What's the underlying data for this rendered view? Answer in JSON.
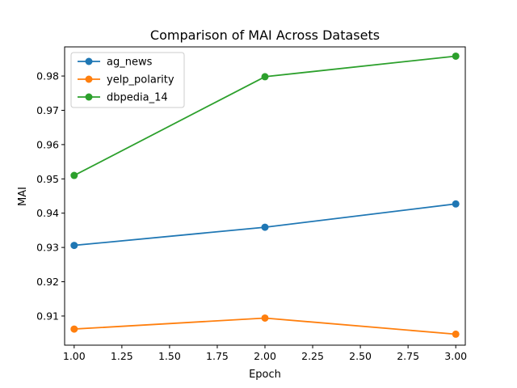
{
  "chart_data": {
    "type": "line",
    "title": "Comparison of MAI Across Datasets",
    "xlabel": "Epoch",
    "ylabel": "MAI",
    "x": [
      1.0,
      2.0,
      3.0
    ],
    "xlim": [
      0.95,
      3.05
    ],
    "ylim": [
      0.9015,
      0.9885
    ],
    "xticks": [
      1.0,
      1.25,
      1.5,
      1.75,
      2.0,
      2.25,
      2.5,
      2.75,
      3.0
    ],
    "xtick_labels": [
      "1.00",
      "1.25",
      "1.50",
      "1.75",
      "2.00",
      "2.25",
      "2.50",
      "2.75",
      "3.00"
    ],
    "yticks": [
      0.91,
      0.92,
      0.93,
      0.94,
      0.95,
      0.96,
      0.97,
      0.98
    ],
    "ytick_labels": [
      "0.91",
      "0.92",
      "0.93",
      "0.94",
      "0.95",
      "0.96",
      "0.97",
      "0.98"
    ],
    "grid": false,
    "legend_position": "top-left",
    "series": [
      {
        "name": "ag_news",
        "color": "#1f77b4",
        "values": [
          0.9306,
          0.9359,
          0.9427
        ]
      },
      {
        "name": "yelp_polarity",
        "color": "#ff7f0e",
        "values": [
          0.9062,
          0.9094,
          0.9047
        ]
      },
      {
        "name": "dbpedia_14",
        "color": "#2ca02c",
        "values": [
          0.951,
          0.9798,
          0.9858
        ]
      }
    ]
  }
}
